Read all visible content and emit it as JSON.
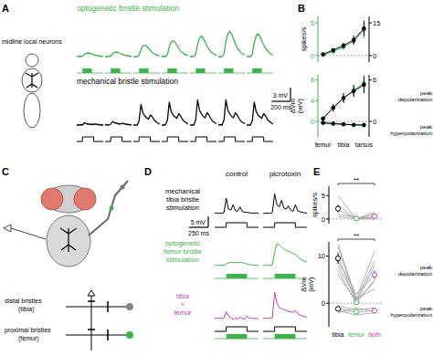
{
  "figure": {
    "panel_labels": [
      "A",
      "B",
      "C",
      "D",
      "E"
    ],
    "neuron_label": "midline local neurons",
    "diagram": {
      "labels": [
        "distal bristles",
        "(tibia)",
        "proximal bristles",
        "(femur)"
      ]
    },
    "columns": [
      "control",
      "picrotoxin"
    ]
  },
  "chart_data": [
    {
      "type": "line",
      "title": "optogenetic bristle stimulation",
      "x": [
        0,
        20,
        40,
        60,
        80,
        100,
        120,
        140,
        160,
        180,
        200,
        220,
        240,
        260,
        280
      ],
      "xlim": [
        0,
        280
      ],
      "ylim": [
        -2,
        8
      ],
      "tick_labels": false,
      "series": [
        {
          "color": "#3cb44b",
          "values": [
            0,
            0.1,
            0,
            0.1,
            0.5,
            0.7,
            0.8,
            0.7,
            0.6,
            0.4,
            0.3,
            0.2,
            0.1,
            0.1,
            0
          ],
          "stimulus": {
            "optogenetic": [
              60,
              160
            ]
          }
        },
        {
          "color": "#3cb44b",
          "values": [
            0,
            0,
            0.1,
            0.1,
            0.6,
            0.9,
            1,
            0.9,
            0.7,
            0.5,
            0.4,
            0.2,
            0.2,
            0.1,
            0
          ],
          "stimulus": {
            "optogenetic": [
              60,
              160
            ]
          }
        },
        {
          "color": "#3cb44b",
          "values": [
            0,
            0,
            0,
            0.3,
            1.5,
            2.3,
            2.5,
            2.3,
            1.8,
            1.3,
            0.9,
            0.6,
            0.4,
            0.3,
            0.1
          ],
          "stimulus": {
            "optogenetic": [
              60,
              160
            ]
          }
        },
        {
          "color": "#3cb44b",
          "values": [
            0,
            0.1,
            0,
            0.4,
            2.1,
            3.2,
            3.5,
            3.2,
            2.5,
            1.8,
            1.2,
            0.9,
            0.5,
            0.4,
            0.2
          ],
          "stimulus": {
            "optogenetic": [
              60,
              160
            ]
          }
        },
        {
          "color": "#3cb44b",
          "values": [
            0,
            0,
            0.1,
            0.5,
            2.7,
            4,
            4.5,
            4,
            3.2,
            2.3,
            1.6,
            1.1,
            0.7,
            0.5,
            0.2
          ],
          "stimulus": {
            "optogenetic": [
              60,
              160
            ]
          }
        },
        {
          "color": "#3cb44b",
          "values": [
            0,
            0,
            0,
            0.6,
            3.3,
            5,
            5.5,
            5,
            3.9,
            2.8,
            1.9,
            1.4,
            0.8,
            0.6,
            0.3
          ],
          "stimulus": {
            "optogenetic": [
              60,
              160
            ]
          }
        },
        {
          "color": "#3cb44b",
          "values": [
            0,
            0.1,
            0,
            0.5,
            3,
            4.5,
            5,
            4.5,
            3.5,
            2.5,
            1.8,
            1.3,
            0.8,
            0.5,
            0.3
          ],
          "stimulus": {
            "optogenetic": [
              60,
              160
            ]
          }
        }
      ]
    },
    {
      "type": "line",
      "title": "mechanical bristle stimulation",
      "x": [
        0,
        20,
        40,
        60,
        80,
        100,
        120,
        140,
        160,
        180,
        200,
        220,
        240,
        260,
        280
      ],
      "xlim": [
        0,
        280
      ],
      "ylim": [
        -2,
        8
      ],
      "tick_labels": false,
      "scale_bar": {
        "y": 3,
        "y_label": "3 mV",
        "x": 200,
        "x_label": "200 ms"
      },
      "series": [
        {
          "color": "#000000",
          "values": [
            0,
            0,
            0.1,
            0,
            0.5,
            0.3,
            0.2,
            0.2,
            0.1,
            0.2,
            0.2,
            0.1,
            0.1,
            0,
            0
          ],
          "stimulus": {
            "mechanical": [
              60,
              180
            ]
          }
        },
        {
          "color": "#000000",
          "values": [
            0,
            0.1,
            0,
            0.2,
            0.8,
            0.5,
            0.4,
            0.3,
            0.2,
            0.4,
            0.3,
            0.2,
            0.1,
            0.1,
            0
          ],
          "stimulus": {
            "mechanical": [
              60,
              180
            ]
          }
        },
        {
          "color": "#000000",
          "values": [
            0,
            0,
            0,
            0.9,
            4.5,
            2.7,
            2,
            1.6,
            1.3,
            2.2,
            1.8,
            1.1,
            0.7,
            0.4,
            0.2
          ],
          "stimulus": {
            "mechanical": [
              60,
              180
            ]
          }
        },
        {
          "color": "#000000",
          "values": [
            0,
            0,
            0.1,
            1,
            5,
            3,
            2.2,
            1.8,
            1.5,
            2.5,
            2,
            1.2,
            0.8,
            0.5,
            0.2
          ],
          "stimulus": {
            "mechanical": [
              60,
              180
            ]
          }
        },
        {
          "color": "#000000",
          "values": [
            0,
            0,
            0,
            1.1,
            5.5,
            3.3,
            2.5,
            1.9,
            1.6,
            2.7,
            2.2,
            1.4,
            0.8,
            0.5,
            0.3
          ],
          "stimulus": {
            "mechanical": [
              60,
              180
            ]
          }
        },
        {
          "color": "#000000",
          "values": [
            0,
            0.1,
            0,
            1.1,
            5.5,
            3.3,
            2.5,
            1.9,
            1.6,
            2.7,
            2.2,
            1.4,
            0.8,
            0.5,
            0.3
          ],
          "stimulus": {
            "mechanical": [
              60,
              180
            ]
          }
        },
        {
          "color": "#000000",
          "values": [
            0,
            0,
            0,
            1,
            5,
            3,
            2.2,
            1.8,
            1.5,
            2.5,
            2,
            1.2,
            0.8,
            0.5,
            0.2
          ],
          "stimulus": {
            "mechanical": [
              60,
              180
            ]
          }
        }
      ]
    },
    {
      "type": "line",
      "ylabel": "spikes/s",
      "categories": [
        "femur",
        null,
        "tibia",
        null,
        "tarsus"
      ],
      "tick_labels": "y",
      "ylim": [
        -1,
        6
      ],
      "yticks": [
        0,
        5
      ],
      "y2lim": [
        -3,
        18
      ],
      "y2ticks": [
        0,
        15
      ],
      "marker": "circle",
      "series": [
        {
          "color": "#3cb44b",
          "line_style": "solid",
          "values": [
            0.1,
            0.6,
            1.3,
            2.2,
            3.9
          ],
          "errors": [
            0.1,
            0.3,
            0.4,
            0.6,
            1.2
          ]
        },
        {
          "color": "#000000",
          "line_style": "solid",
          "axis": "y2",
          "values": [
            0.6,
            2.5,
            4.6,
            7.2,
            12.5
          ],
          "errors": [
            0.3,
            0.8,
            1.2,
            2,
            3.5
          ]
        }
      ]
    },
    {
      "type": "line",
      "ylabel": "ΔVm (mV)",
      "categories": [
        "femur",
        null,
        "tibia",
        null,
        "tarsus"
      ],
      "tick_labels": true,
      "ylim": [
        -3,
        9
      ],
      "yticks": [
        0,
        4,
        8
      ],
      "y2lim": [
        -2.25,
        6.75
      ],
      "y2ticks": [
        0,
        6
      ],
      "marker": "circle",
      "annotations": [
        "peak depolarization",
        "peak hyperpolarization"
      ],
      "series": [
        {
          "color": "#3cb44b",
          "line_style": "solid",
          "values": [
            0.6,
            2.6,
            4.5,
            6,
            7.4
          ],
          "errors": [
            0.3,
            0.6,
            0.8,
            1,
            1.6
          ]
        },
        {
          "color": "#000000",
          "line_style": "solid",
          "axis": "y2",
          "values": [
            0.4,
            2,
            3.4,
            4.4,
            5.3
          ],
          "errors": [
            0.2,
            0.5,
            0.7,
            0.9,
            1.2
          ]
        },
        {
          "color": "#3cb44b",
          "line_style": "solid",
          "values": [
            -0.3,
            -0.5,
            -0.6,
            -0.7,
            -0.8
          ],
          "errors": [
            0.1,
            0.2,
            0.2,
            0.2,
            0.3
          ]
        },
        {
          "color": "#000000",
          "line_style": "solid",
          "axis": "y2",
          "values": [
            -0.2,
            -0.3,
            -0.4,
            -0.5,
            -0.5
          ],
          "errors": [
            0.1,
            0.1,
            0.2,
            0.2,
            0.2
          ]
        }
      ]
    },
    {
      "type": "line",
      "title": [
        "mechanical",
        "tibia bristle",
        "stimulation"
      ],
      "x": [
        0,
        30,
        60,
        90,
        120,
        150,
        180,
        210,
        240,
        270,
        300,
        330,
        360,
        390,
        420,
        450,
        480,
        510,
        540,
        570
      ],
      "xlim": [
        0,
        570
      ],
      "ylim": [
        -3,
        15
      ],
      "tick_labels": false,
      "stimulus": {
        "mechanical": [
          150,
          420
        ]
      },
      "scale_bar": {
        "y": 5,
        "y_label": "5 mV",
        "x": 250,
        "x_label": "250 ms"
      },
      "series": [
        {
          "color": "#000000",
          "values": [
            0,
            0.2,
            0,
            0.1,
            0.3,
            7,
            2,
            1.5,
            4,
            1.2,
            1,
            3,
            0.8,
            0.6,
            0.5,
            0.3,
            0.2,
            0.1,
            0.3,
            0
          ]
        },
        {
          "color": "#000000",
          "values": [
            0,
            0.1,
            0.2,
            0,
            0.4,
            9,
            4,
            3,
            6,
            2.5,
            2,
            3.5,
            1.5,
            1,
            4,
            1.2,
            0.8,
            0.5,
            0.3,
            0.1
          ]
        }
      ]
    },
    {
      "type": "line",
      "title": [
        "optogenetic",
        "femur bristle",
        "stimulation"
      ],
      "x": [
        0,
        30,
        60,
        90,
        120,
        150,
        180,
        210,
        240,
        270,
        300,
        330,
        360,
        390,
        420,
        450,
        480,
        510,
        540,
        570
      ],
      "xlim": [
        0,
        570
      ],
      "ylim": [
        -3,
        15
      ],
      "tick_labels": false,
      "stimulus": {
        "optogenetic": [
          150,
          420
        ]
      },
      "series": [
        {
          "color": "#3cb44b",
          "values": [
            0,
            0.1,
            0,
            0.2,
            0,
            0.8,
            1.2,
            1.4,
            1.3,
            1.5,
            1.2,
            1.4,
            1.3,
            1.1,
            0.6,
            0.4,
            0.3,
            0.2,
            0.1,
            0
          ]
        },
        {
          "color": "#3cb44b",
          "values": [
            0,
            0.2,
            0,
            0.1,
            0.3,
            6,
            10,
            9.5,
            8.5,
            7.5,
            7,
            6.5,
            6,
            5.5,
            5,
            4,
            3,
            2.5,
            2,
            1.5
          ]
        }
      ]
    },
    {
      "type": "line",
      "title": [
        "tibia",
        "+",
        "femur"
      ],
      "x": [
        0,
        30,
        60,
        90,
        120,
        150,
        180,
        210,
        240,
        270,
        300,
        330,
        360,
        390,
        420,
        450,
        480,
        510,
        540,
        570
      ],
      "xlim": [
        0,
        570
      ],
      "ylim": [
        -3,
        15
      ],
      "tick_labels": false,
      "stimulus": {
        "mechanical": [
          150,
          420
        ],
        "optogenetic": [
          150,
          420
        ]
      },
      "series": [
        {
          "color": "#c23bc2",
          "values": [
            0,
            0.1,
            0.2,
            0,
            0.1,
            3,
            1,
            0.3,
            -0.5,
            0.2,
            -0.3,
            0.5,
            0,
            -0.4,
            1.2,
            0.2,
            0,
            0.1,
            -0.2,
            0
          ]
        },
        {
          "color": "#c23bc2",
          "values": [
            0,
            0.1,
            0,
            0.2,
            0.3,
            12,
            7,
            5,
            4.5,
            4,
            3.6,
            3.2,
            3,
            2.8,
            3.5,
            2.2,
            1.6,
            1.2,
            0.8,
            0.5
          ]
        }
      ]
    },
    {
      "type": "scatter",
      "ylabel": "spikes/s",
      "categories": [
        "tibia",
        "femur",
        "both"
      ],
      "colors": [
        "#000000",
        "#3cb44b",
        "#c23bc2"
      ],
      "tick_labels": "y",
      "ylim": [
        -1,
        7
      ],
      "yticks": [
        0,
        5
      ],
      "marker": "circle",
      "values": [
        2.2,
        0.1,
        0.6
      ],
      "errors": [
        0.8,
        0.1,
        0.3
      ],
      "cells": [
        [
          5,
          0,
          1.5
        ],
        [
          3,
          0,
          0.5
        ],
        [
          2,
          0,
          1
        ],
        [
          0.5,
          0,
          0
        ],
        [
          1,
          0.3,
          0.2
        ]
      ],
      "significance": "**"
    },
    {
      "type": "scatter",
      "ylabel": "ΔVm (mV)",
      "categories": [
        "tibia",
        "femur",
        "both"
      ],
      "colors": [
        "#000000",
        "#3cb44b",
        "#c23bc2"
      ],
      "tick_labels": true,
      "ylim": [
        -5,
        13
      ],
      "yticks": [
        0,
        10
      ],
      "marker": "circle",
      "significance": "**",
      "annotations": [
        "peak depolarization",
        "peak hyperpolarization"
      ],
      "series": [
        {
          "values": [
            9.5,
            0.2,
            6
          ],
          "errors": [
            1.2,
            0.4,
            1
          ],
          "cells": [
            [
              12.5,
              1,
              11
            ],
            [
              12,
              0.5,
              9
            ],
            [
              10,
              0,
              8
            ],
            [
              9,
              2,
              6
            ],
            [
              7,
              0,
              5
            ],
            [
              6,
              0.5,
              4.5
            ],
            [
              8,
              1,
              3
            ]
          ]
        },
        {
          "values": [
            -1.2,
            -1.8,
            -1.6
          ],
          "errors": [
            0.3,
            0.4,
            0.4
          ],
          "cells": [
            [
              -1,
              -2,
              -1.5
            ],
            [
              -0.5,
              -1.5,
              -1
            ],
            [
              -1.5,
              -2.5,
              -2
            ],
            [
              -2,
              -1,
              -1.8
            ]
          ]
        }
      ]
    }
  ]
}
